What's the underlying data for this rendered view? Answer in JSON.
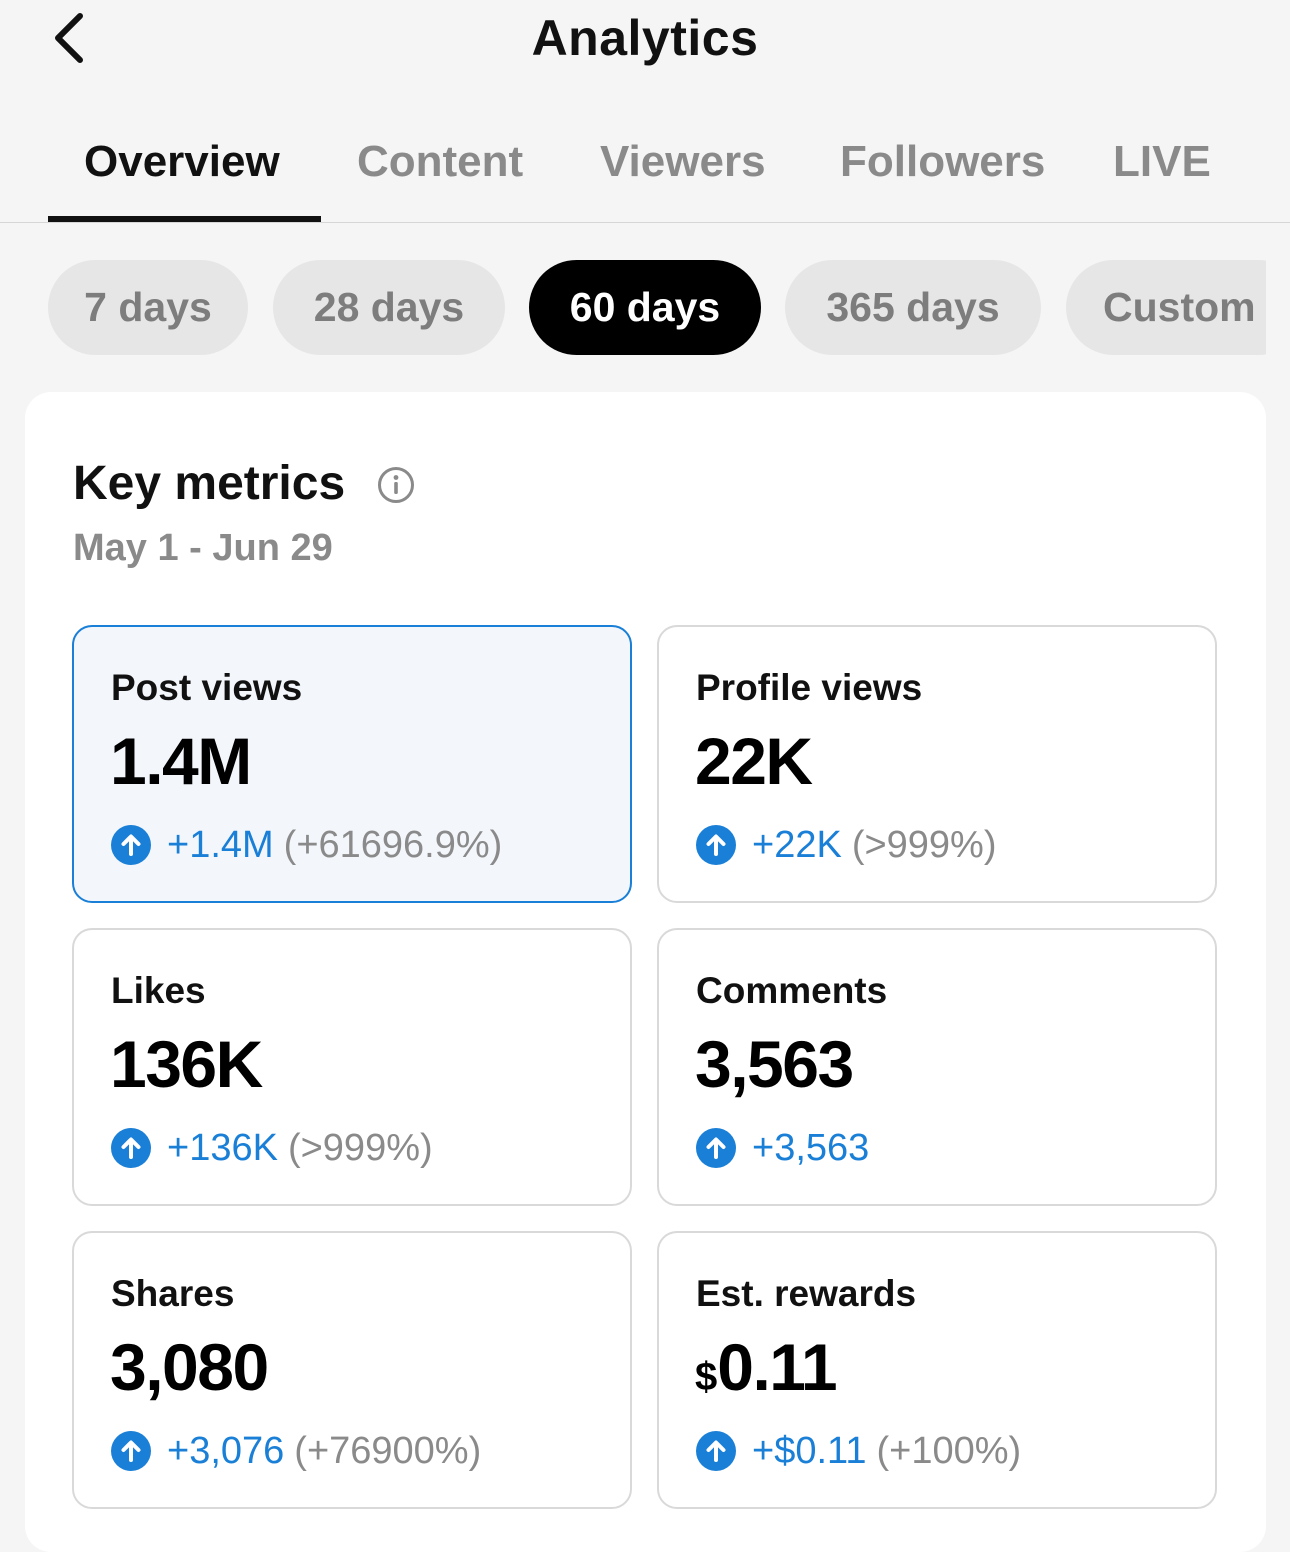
{
  "header": {
    "title": "Analytics",
    "back_icon": "chevron-left-icon"
  },
  "tabs": [
    {
      "label": "Overview",
      "active": true
    },
    {
      "label": "Content",
      "active": false
    },
    {
      "label": "Viewers",
      "active": false
    },
    {
      "label": "Followers",
      "active": false
    },
    {
      "label": "LIVE",
      "active": false
    }
  ],
  "ranges": [
    {
      "label": "7 days",
      "active": false
    },
    {
      "label": "28 days",
      "active": false
    },
    {
      "label": "60 days",
      "active": true
    },
    {
      "label": "365 days",
      "active": false
    },
    {
      "label": "Custom",
      "active": false
    }
  ],
  "key_metrics": {
    "title": "Key metrics",
    "info_icon": "info-circle-icon",
    "date_range": "May 1 - Jun 29",
    "cards": [
      {
        "label": "Post views",
        "currency": "",
        "value": "1.4M",
        "delta": "+1.4M",
        "pct": "(+61696.9%)",
        "selected": true
      },
      {
        "label": "Profile views",
        "currency": "",
        "value": "22K",
        "delta": "+22K",
        "pct": "(>999%)",
        "selected": false
      },
      {
        "label": "Likes",
        "currency": "",
        "value": "136K",
        "delta": "+136K",
        "pct": "(>999%)",
        "selected": false
      },
      {
        "label": "Comments",
        "currency": "",
        "value": "3,563",
        "delta": "+3,563",
        "pct": "",
        "selected": false
      },
      {
        "label": "Shares",
        "currency": "",
        "value": "3,080",
        "delta": "+3,076",
        "pct": "(+76900%)",
        "selected": false
      },
      {
        "label": "Est. rewards",
        "currency": "$",
        "value": "0.11",
        "delta": "+$0.11",
        "pct": "(+100%)",
        "selected": false
      }
    ]
  },
  "colors": {
    "accent": "#1a7fd6",
    "text": "#111111",
    "muted": "#8a8a8a",
    "chip_bg": "#e6e6e6",
    "background": "#f5f5f5"
  }
}
